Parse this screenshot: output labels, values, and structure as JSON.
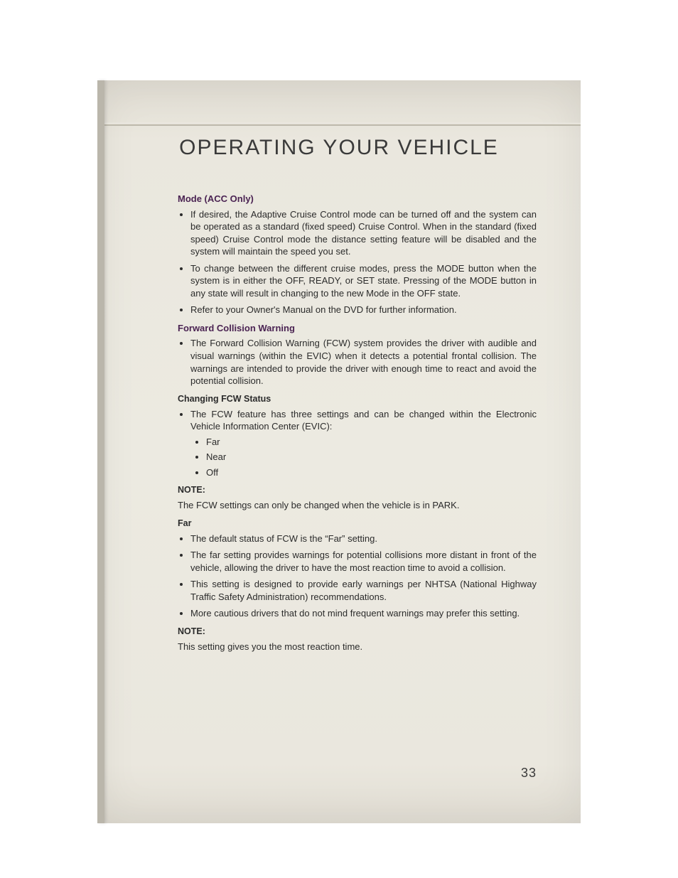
{
  "title": "OPERATING YOUR VEHICLE",
  "page_number": "33",
  "style": {
    "page_bg_top": "#e1ddd3",
    "page_bg_mid": "#eceae1",
    "left_rule": "#bab6ab",
    "title_color": "#3a3a3a",
    "heading_color": "#4a2352",
    "body_color": "#2b2b2b",
    "body_fontsize": 13,
    "title_fontsize": 30,
    "title_letterspacing": 2
  },
  "s1": {
    "head": "Mode (ACC Only)",
    "b1": "If desired, the Adaptive Cruise Control mode can be turned off and the system can be operated as a standard (fixed speed) Cruise Control. When in the standard (fixed speed) Cruise Control mode the distance setting feature will be disabled and the system will maintain the speed you set.",
    "b2": "To change between the different cruise modes, press the MODE button when the system is in either the OFF, READY, or SET state. Pressing of the MODE button in any state will result in changing to the new Mode in the OFF state.",
    "b3": "Refer to your Owner's Manual on the DVD for further information."
  },
  "s2": {
    "head": "Forward Collision Warning",
    "b1": "The Forward Collision Warning (FCW) system provides the driver with audible and visual warnings (within the EVIC) when it detects a potential frontal collision. The warnings are intended to provide the driver with enough time to react and avoid the potential collision."
  },
  "s3": {
    "head": "Changing FCW Status",
    "b1": "The FCW feature has three settings and can be changed within the Electronic Vehicle Information Center (EVIC):",
    "i1": "Far",
    "i2": "Near",
    "i3": "Off"
  },
  "note1": {
    "head": "NOTE:",
    "text": "The FCW settings can only be changed when the vehicle is in PARK."
  },
  "s4": {
    "head": "Far",
    "b1": "The default status of FCW is the “Far” setting.",
    "b2": "The far setting provides warnings for potential collisions more distant in front of the vehicle, allowing the driver to have the most reaction time to avoid a collision.",
    "b3": "This setting is designed to provide early warnings per NHTSA (National Highway Traffic Safety Administration) recommendations.",
    "b4": "More cautious drivers that do not mind frequent warnings may prefer this setting."
  },
  "note2": {
    "head": "NOTE:",
    "text": "This setting gives you the most reaction time."
  }
}
